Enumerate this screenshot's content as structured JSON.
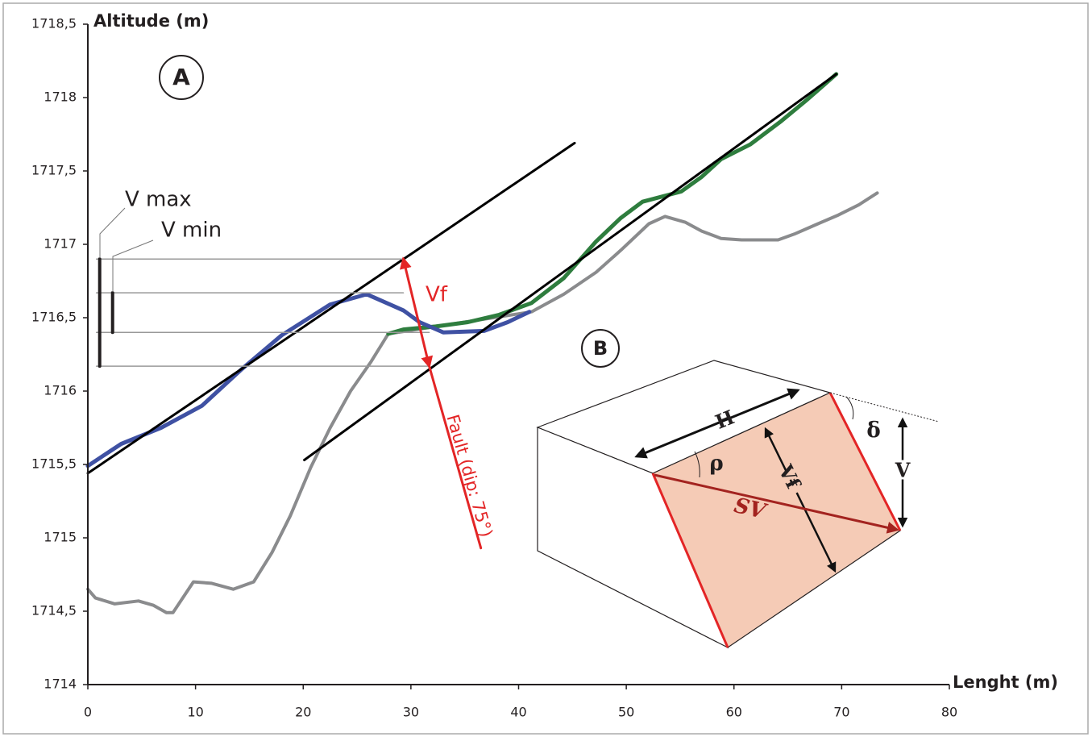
{
  "chart_data": {
    "type": "line",
    "y_label": "Altitude (m)",
    "x_label": "Lenght (m)",
    "xlim": [
      0,
      80
    ],
    "ylim": [
      1714,
      1718.5
    ],
    "xticks": [
      0,
      10,
      20,
      30,
      40,
      50,
      60,
      70,
      80
    ],
    "yticks": [
      1714,
      {
        "value": 1714.5,
        "label": "1714,5"
      },
      1715,
      {
        "value": 1715.5,
        "label": "1715,5"
      },
      1716,
      {
        "value": 1716.5,
        "label": "1716,5"
      },
      1717,
      {
        "value": 1717.5,
        "label": "1717,5"
      },
      1718,
      {
        "value": 1718.5,
        "label": "1718,5"
      }
    ],
    "series": [
      {
        "color": "#8a8b8d",
        "width": 4,
        "x": [
          0,
          0.7,
          2.5,
          4.7,
          6.1,
          7.3,
          7.9,
          9.8,
          11.5,
          13.5,
          15.4,
          17.1,
          18.8,
          20.7,
          22.5,
          24.4,
          26.3,
          27.9,
          41.2,
          44.2,
          47.2,
          49.5,
          52.1,
          53.6,
          55.5,
          57.0,
          58.8,
          60.7,
          64.1,
          65.6,
          67.8,
          69.7,
          71.6,
          73.3
        ],
        "values": [
          1714.65,
          1714.59,
          1714.55,
          1714.57,
          1714.54,
          1714.49,
          1714.49,
          1714.7,
          1714.69,
          1714.65,
          1714.7,
          1714.9,
          1715.15,
          1715.48,
          1715.75,
          1716.0,
          1716.2,
          1716.39,
          1716.54,
          1716.66,
          1716.81,
          1716.96,
          1717.14,
          1717.19,
          1717.15,
          1717.09,
          1717.04,
          1717.03,
          1717.03,
          1717.07,
          1717.14,
          1717.2,
          1717.27,
          1717.35
        ]
      },
      {
        "color": "#2e7d3e",
        "width": 5,
        "x": [
          27.9,
          29.3,
          32.3,
          35.3,
          38.2,
          41.2,
          44.2,
          47.2,
          49.5,
          51.5,
          55.1,
          57.0,
          58.8,
          61.5,
          64.4,
          66.7,
          69.5
        ],
        "values": [
          1716.39,
          1716.42,
          1716.44,
          1716.47,
          1716.52,
          1716.6,
          1716.77,
          1717.02,
          1717.18,
          1717.29,
          1717.36,
          1717.46,
          1717.58,
          1717.68,
          1717.84,
          1717.98,
          1718.16
        ]
      },
      {
        "color": "#3f51a3",
        "width": 5,
        "x": [
          0,
          3.1,
          6.8,
          10.6,
          14.3,
          18.0,
          22.5,
          25.9,
          29.3,
          30.8,
          33.0,
          36.8,
          39.0,
          41.0
        ],
        "values": [
          1715.49,
          1715.64,
          1715.75,
          1715.9,
          1716.15,
          1716.38,
          1716.59,
          1716.66,
          1716.55,
          1716.47,
          1716.4,
          1716.41,
          1716.47,
          1716.54
        ]
      },
      {
        "color": "#000000",
        "width": 3,
        "x": [
          0,
          45.2
        ],
        "values": [
          1715.44,
          1717.69
        ]
      },
      {
        "color": "#000000",
        "width": 3,
        "x": [
          20.1,
          69.5
        ],
        "values": [
          1715.53,
          1718.16
        ]
      },
      {
        "color": "#999999",
        "width": 1.5,
        "x": [
          0.8,
          29.3
        ],
        "values": [
          1716.9,
          1716.9
        ]
      },
      {
        "color": "#999999",
        "width": 1.5,
        "x": [
          0.8,
          29.3
        ],
        "values": [
          1716.67,
          1716.67
        ]
      },
      {
        "color": "#999999",
        "width": 1.5,
        "x": [
          0.8,
          31.7
        ],
        "values": [
          1716.4,
          1716.4
        ]
      },
      {
        "color": "#999999",
        "width": 1.5,
        "x": [
          0.8,
          31.7
        ],
        "values": [
          1716.17,
          1716.17
        ]
      },
      {
        "color": "#231f20",
        "width": 4,
        "x": [
          1.1,
          1.1
        ],
        "values": [
          1716.17,
          1716.9
        ]
      },
      {
        "color": "#231f20",
        "width": 4,
        "x": [
          2.3,
          2.3
        ],
        "values": [
          1716.4,
          1716.67
        ]
      },
      {
        "color": "#e32526",
        "width": 3,
        "arrows": true,
        "x": [
          29.3,
          31.7
        ],
        "values": [
          1716.9,
          1716.17
        ]
      },
      {
        "color": "#e32526",
        "width": 3,
        "x": [
          31.7,
          36.5
        ],
        "values": [
          1716.17,
          1714.93
        ]
      }
    ],
    "annotations": {
      "panel_a": "A",
      "panel_b": "B",
      "v_max": "V max",
      "v_min": "V min",
      "vf": "Vf",
      "fault": "Fault (dip: 75°)",
      "inset": {
        "h": "H",
        "vf": "Vf",
        "rho": "ρ",
        "delta": "δ",
        "v": "V",
        "sv": "SV"
      }
    }
  }
}
